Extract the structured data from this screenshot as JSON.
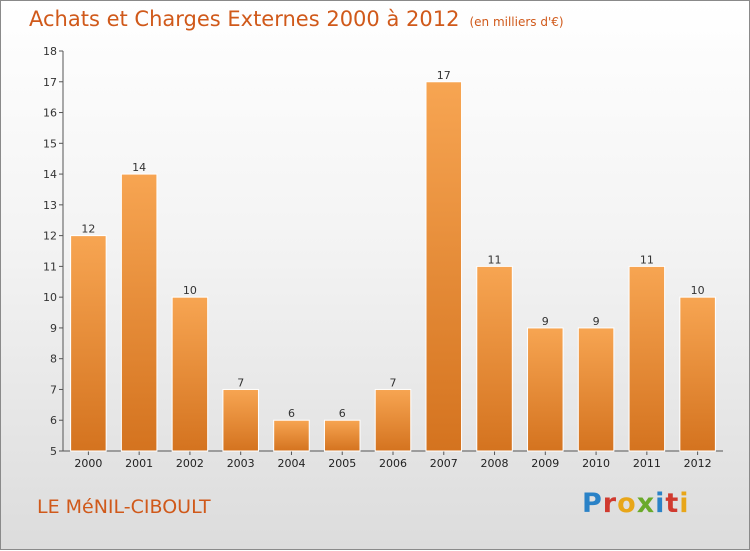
{
  "header": {
    "title": "Achats et Charges Externes 2000 à 2012",
    "subtitle": "(en milliers d'€)"
  },
  "footer": {
    "city": "LE MéNIL-CIBOULT",
    "logo": "Proxiti"
  },
  "colors": {
    "accent": "#d0591a",
    "bar_light": "#f7a552",
    "bar_dark": "#d4731f"
  },
  "chart_data": {
    "type": "bar",
    "title": "Achats et Charges Externes 2000 à 2012",
    "subtitle": "(en milliers d'€)",
    "categories": [
      "2000",
      "2001",
      "2002",
      "2003",
      "2004",
      "2005",
      "2006",
      "2007",
      "2008",
      "2009",
      "2010",
      "2011",
      "2012"
    ],
    "values": [
      12,
      14,
      10,
      7,
      6,
      6,
      7,
      17,
      11,
      9,
      9,
      11,
      10
    ],
    "ylim": [
      5,
      18
    ],
    "yticks": [
      5,
      6,
      7,
      8,
      9,
      10,
      11,
      12,
      13,
      14,
      15,
      16,
      17,
      18
    ],
    "grid": false,
    "data_labels": true
  }
}
